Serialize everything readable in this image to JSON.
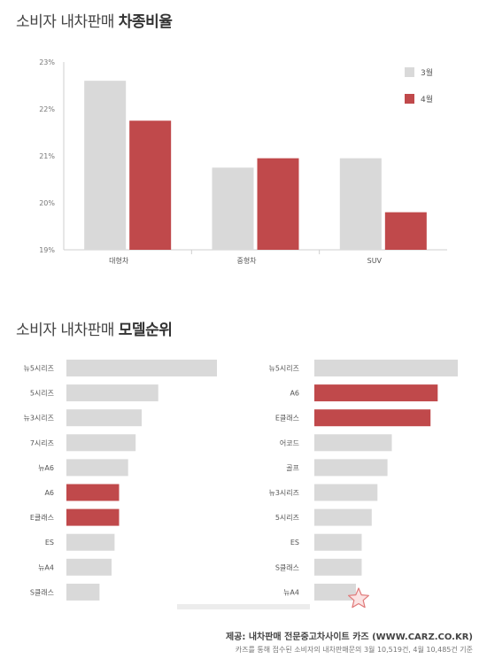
{
  "sections": {
    "type_ratio": {
      "title_prefix": "소비자 내차판매 ",
      "title_bold": "차종비율"
    },
    "model_rank": {
      "title_prefix": "소비자 내차판매 ",
      "title_bold": "모델순위"
    }
  },
  "source": {
    "line1": "제공: 내차판매 전문중고차사이트 카즈 (WWW.CARZ.CO.KR)",
    "line2": "카즈를 통해 접수된 소비자의 내차판매문의 3월 10,519건, 4월 10,485건 기준"
  },
  "colors": {
    "march": "#d9d9d9",
    "april": "#c0494b",
    "highlight": "#c0494b",
    "neutral": "#d9d9d9"
  },
  "chart_data": [
    {
      "type": "bar",
      "categories": [
        "대형차",
        "중형차",
        "SUV"
      ],
      "series": [
        {
          "name": "3월",
          "values": [
            22.6,
            20.75,
            20.95
          ]
        },
        {
          "name": "4월",
          "values": [
            21.75,
            20.95,
            19.8
          ]
        }
      ],
      "ylim": [
        19,
        23
      ],
      "yticks": [
        "19%",
        "20%",
        "21%",
        "22%",
        "23%"
      ],
      "legend": "top-right",
      "grid": false
    },
    {
      "type": "bar",
      "orientation": "horizontal",
      "categories": [
        "뉴5시리즈",
        "5시리즈",
        "뉴3시리즈",
        "7시리즈",
        "뉴A6",
        "A6",
        "E클래스",
        "ES",
        "뉴A4",
        "S클래스"
      ],
      "values": [
        100,
        61,
        50,
        46,
        41,
        35,
        35,
        32,
        30,
        22
      ],
      "highlighted": [
        "A6",
        "E클래스"
      ]
    },
    {
      "type": "bar",
      "orientation": "horizontal",
      "categories": [
        "뉴5시리즈",
        "A6",
        "E클래스",
        "어코드",
        "골프",
        "뉴3시리즈",
        "5시리즈",
        "ES",
        "S클래스",
        "뉴A4"
      ],
      "values": [
        100,
        86,
        81,
        54,
        51,
        44,
        40,
        33,
        33,
        29
      ],
      "highlighted": [
        "A6",
        "E클래스"
      ]
    }
  ]
}
